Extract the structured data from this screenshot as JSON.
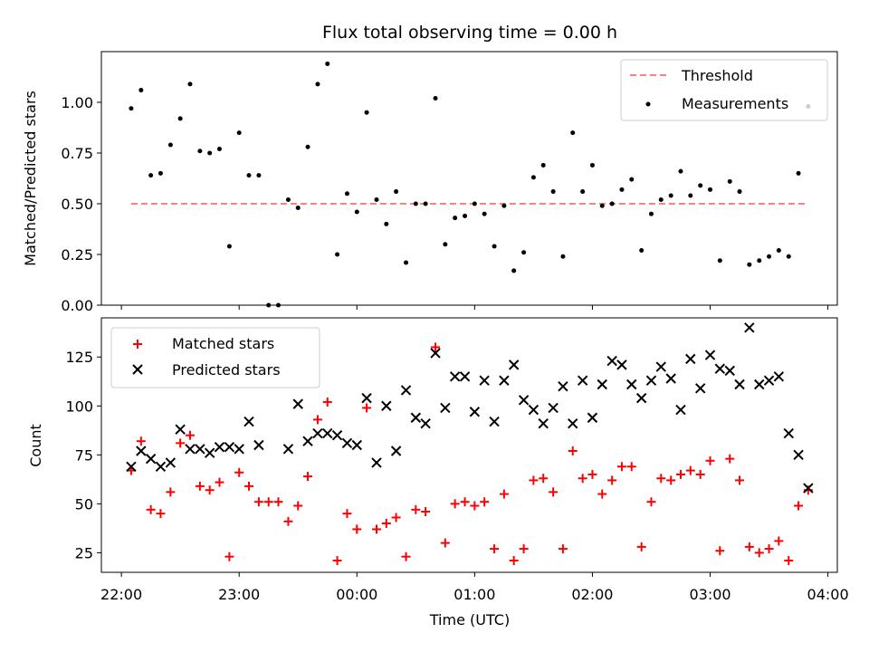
{
  "chart_data": [
    {
      "type": "scatter",
      "title": "Flux total observing time = 0.00 h",
      "xlabel": "",
      "ylabel": "Matched/Predicted stars",
      "ylim": [
        0,
        1.25
      ],
      "yticks": [
        0.0,
        0.25,
        0.5,
        0.75,
        1.0
      ],
      "ytick_labels": [
        "0.00",
        "0.25",
        "0.50",
        "0.75",
        "1.00"
      ],
      "legend_position": "top-right",
      "legend": [
        "Threshold",
        "Measurements"
      ],
      "threshold": {
        "name": "Threshold",
        "value": 0.5,
        "color": "#ff7f7f",
        "x_start": 22.083,
        "x_end": 27.833
      },
      "series": [
        {
          "name": "Measurements",
          "color": "#000000",
          "x": [
            22.083,
            22.167,
            22.25,
            22.333,
            22.417,
            22.5,
            22.583,
            22.667,
            22.75,
            22.833,
            22.917,
            23.0,
            23.083,
            23.167,
            23.25,
            23.333,
            23.417,
            23.5,
            23.583,
            23.667,
            23.75,
            23.833,
            23.917,
            24.0,
            24.083,
            24.167,
            24.25,
            24.333,
            24.417,
            24.5,
            24.583,
            24.667,
            24.75,
            24.833,
            24.917,
            25.0,
            25.083,
            25.167,
            25.25,
            25.333,
            25.417,
            25.5,
            25.583,
            25.667,
            25.75,
            25.833,
            25.917,
            26.0,
            26.083,
            26.167,
            26.25,
            26.333,
            26.417,
            26.5,
            26.583,
            26.667,
            26.75,
            26.833,
            26.917,
            27.0,
            27.083,
            27.167,
            27.25,
            27.333,
            27.417,
            27.5,
            27.583,
            27.667,
            27.75,
            27.833
          ],
          "y": [
            0.97,
            1.06,
            0.64,
            0.65,
            0.79,
            0.92,
            1.09,
            0.76,
            0.75,
            0.77,
            0.29,
            0.85,
            0.64,
            0.64,
            0.0,
            0.0,
            0.52,
            0.48,
            0.78,
            1.09,
            1.19,
            0.25,
            0.55,
            0.46,
            0.95,
            0.52,
            0.4,
            0.56,
            0.21,
            0.5,
            0.5,
            1.02,
            0.3,
            0.43,
            0.44,
            0.5,
            0.45,
            0.29,
            0.49,
            0.17,
            0.26,
            0.63,
            0.69,
            0.56,
            0.24,
            0.85,
            0.56,
            0.69,
            0.49,
            0.5,
            0.57,
            0.62,
            0.27,
            0.45,
            0.52,
            0.54,
            0.66,
            0.54,
            0.59,
            0.57,
            0.22,
            0.61,
            0.56,
            0.2,
            0.22,
            0.24,
            0.27,
            0.24,
            0.65,
            0.98
          ]
        }
      ]
    },
    {
      "type": "scatter",
      "title": "",
      "xlabel": "Time (UTC)",
      "ylabel": "Count",
      "xlim": [
        21.83,
        28.08
      ],
      "xticks": [
        22,
        23,
        24,
        25,
        26,
        27,
        28
      ],
      "xtick_labels": [
        "22:00",
        "23:00",
        "00:00",
        "01:00",
        "02:00",
        "03:00",
        "04:00"
      ],
      "ylim": [
        15,
        145
      ],
      "yticks": [
        25,
        50,
        75,
        100,
        125
      ],
      "ytick_labels": [
        "25",
        "50",
        "75",
        "100",
        "125"
      ],
      "legend_position": "top-left",
      "legend": [
        "Matched stars",
        "Predicted stars"
      ],
      "series": [
        {
          "name": "Matched stars",
          "color": "#ff0000",
          "marker": "plus",
          "x": [
            22.083,
            22.167,
            22.25,
            22.333,
            22.417,
            22.5,
            22.583,
            22.667,
            22.75,
            22.833,
            22.917,
            23.0,
            23.083,
            23.167,
            23.25,
            23.333,
            23.417,
            23.5,
            23.583,
            23.667,
            23.75,
            23.833,
            23.917,
            24.0,
            24.083,
            24.167,
            24.25,
            24.333,
            24.417,
            24.5,
            24.583,
            24.667,
            24.75,
            24.833,
            24.917,
            25.0,
            25.083,
            25.167,
            25.25,
            25.333,
            25.417,
            25.5,
            25.583,
            25.667,
            25.75,
            25.833,
            25.917,
            26.0,
            26.083,
            26.167,
            26.25,
            26.333,
            26.417,
            26.5,
            26.583,
            26.667,
            26.75,
            26.833,
            26.917,
            27.0,
            27.083,
            27.167,
            27.25,
            27.333,
            27.417,
            27.5,
            27.583,
            27.667,
            27.75,
            27.833
          ],
          "y": [
            67,
            82,
            47,
            45,
            56,
            81,
            85,
            59,
            57,
            61,
            23,
            66,
            59,
            51,
            51,
            51,
            41,
            49,
            64,
            93,
            102,
            21,
            45,
            37,
            99,
            37,
            40,
            43,
            23,
            47,
            46,
            130,
            30,
            50,
            51,
            49,
            51,
            27,
            55,
            21,
            27,
            62,
            63,
            56,
            27,
            77,
            63,
            65,
            55,
            62,
            69,
            69,
            28,
            51,
            63,
            62,
            65,
            67,
            65,
            72,
            26,
            73,
            62,
            28,
            25,
            27,
            31,
            21,
            49,
            57
          ]
        },
        {
          "name": "Predicted stars",
          "color": "#000000",
          "marker": "x",
          "x": [
            22.083,
            22.167,
            22.25,
            22.333,
            22.417,
            22.5,
            22.583,
            22.667,
            22.75,
            22.833,
            22.917,
            23.0,
            23.083,
            23.167,
            23.417,
            23.5,
            23.583,
            23.667,
            23.75,
            23.833,
            23.917,
            24.0,
            24.083,
            24.167,
            24.25,
            24.333,
            24.417,
            24.5,
            24.583,
            24.667,
            24.75,
            24.833,
            24.917,
            25.0,
            25.083,
            25.167,
            25.25,
            25.333,
            25.417,
            25.5,
            25.583,
            25.667,
            25.75,
            25.833,
            25.917,
            26.0,
            26.083,
            26.167,
            26.25,
            26.333,
            26.417,
            26.5,
            26.583,
            26.667,
            26.75,
            26.833,
            26.917,
            27.0,
            27.083,
            27.167,
            27.25,
            27.333,
            27.417,
            27.5,
            27.583,
            27.667,
            27.75,
            27.833
          ],
          "y": [
            69,
            77,
            73,
            69,
            71,
            88,
            78,
            78,
            76,
            79,
            79,
            78,
            92,
            80,
            78,
            101,
            82,
            86,
            86,
            85,
            81,
            80,
            104,
            71,
            100,
            77,
            108,
            94,
            91,
            127,
            99,
            115,
            115,
            97,
            113,
            92,
            113,
            121,
            103,
            98,
            91,
            99,
            110,
            91,
            113,
            94,
            111,
            123,
            121,
            111,
            104,
            113,
            120,
            114,
            98,
            124,
            109,
            126,
            119,
            118,
            111,
            140,
            111,
            113,
            115,
            86,
            75,
            58
          ]
        }
      ]
    }
  ]
}
